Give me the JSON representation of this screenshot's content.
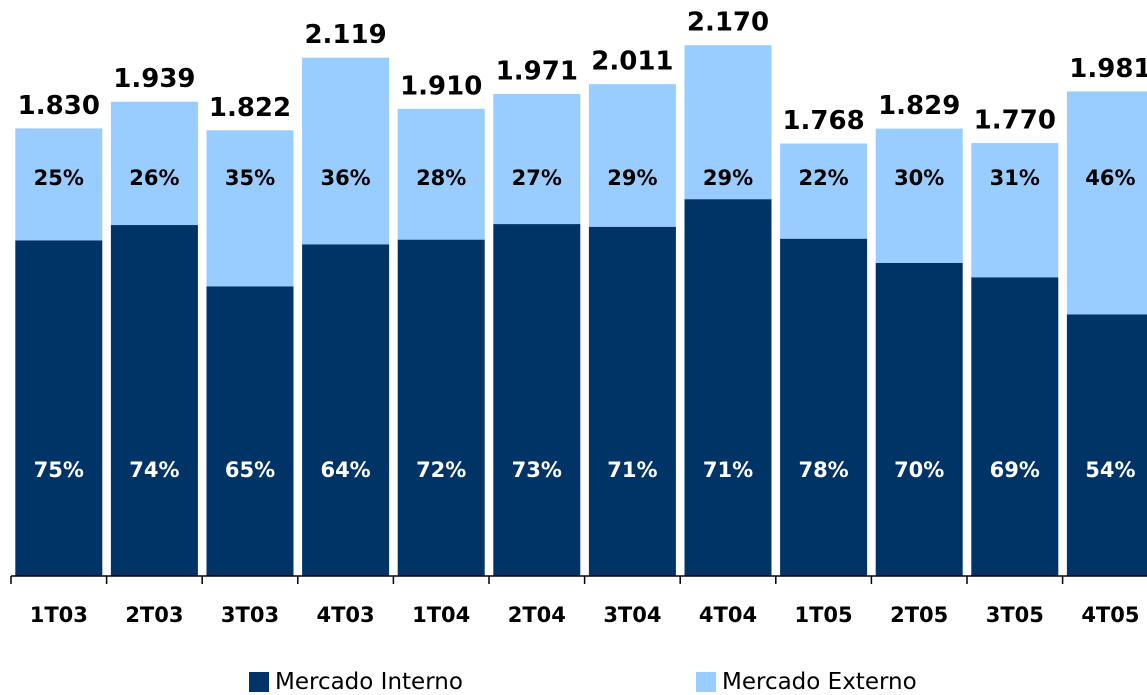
{
  "chart_data": {
    "type": "bar",
    "stacked": true,
    "categories": [
      "1T03",
      "2T03",
      "3T03",
      "4T03",
      "1T04",
      "2T04",
      "3T04",
      "4T04",
      "1T05",
      "2T05",
      "3T05",
      "4T05"
    ],
    "totals": [
      "1.830",
      "1.939",
      "1.822",
      "2.119",
      "1.910",
      "1.971",
      "2.011",
      "2.170",
      "1.768",
      "1.829",
      "1.770",
      "1.981"
    ],
    "series": [
      {
        "name": "Mercado Interno",
        "color": "#003366",
        "pct": [
          75,
          74,
          65,
          64,
          72,
          73,
          71,
          71,
          78,
          70,
          69,
          54
        ],
        "labels": [
          "75%",
          "74%",
          "65%",
          "64%",
          "72%",
          "73%",
          "71%",
          "71%",
          "78%",
          "70%",
          "69%",
          "54%"
        ]
      },
      {
        "name": "Mercado Externo",
        "color": "#99ccff",
        "pct": [
          25,
          26,
          35,
          36,
          28,
          27,
          29,
          29,
          22,
          30,
          31,
          46
        ],
        "labels": [
          "25%",
          "26%",
          "35%",
          "36%",
          "28%",
          "27%",
          "29%",
          "29%",
          "22%",
          "30%",
          "31%",
          "46%"
        ]
      }
    ],
    "axis_min": 0
  }
}
